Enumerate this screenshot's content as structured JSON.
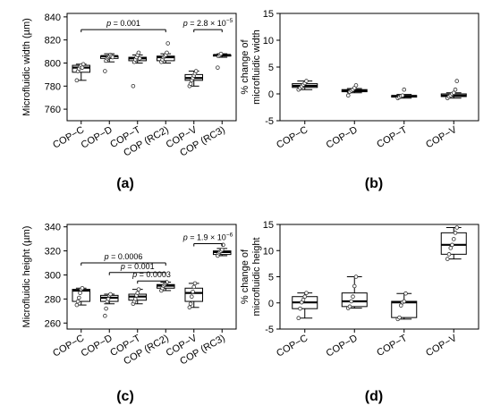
{
  "chart_data": [
    {
      "id": "a",
      "type": "box",
      "panel_label": "(a)",
      "ylabel": "Microfluidic width (µm)",
      "yticks": [
        760,
        780,
        800,
        820,
        840
      ],
      "ylim": [
        750,
        843
      ],
      "categories": [
        "COP−C",
        "COP−D",
        "COP−T",
        "COP (RC2)",
        "COP−V",
        "COP (RC3)"
      ],
      "boxes": [
        {
          "whislo": 785,
          "q1": 792,
          "med": 796,
          "q3": 798,
          "whishi": 799,
          "points": [
            785,
            793,
            795,
            797,
            798,
            796,
            799
          ]
        },
        {
          "whislo": 801,
          "q1": 804,
          "med": 806,
          "q3": 806,
          "whishi": 808,
          "points": [
            793,
            802,
            804,
            805,
            806,
            807,
            806,
            805
          ]
        },
        {
          "whislo": 800,
          "q1": 802,
          "med": 804,
          "q3": 805,
          "whishi": 807,
          "points": [
            780,
            801,
            803,
            805,
            807,
            809,
            804
          ]
        },
        {
          "whislo": 800,
          "q1": 802,
          "med": 805,
          "q3": 806,
          "whishi": 808,
          "points": [
            801,
            803,
            805,
            806,
            807,
            809,
            817
          ]
        },
        {
          "whislo": 780,
          "q1": 785,
          "med": 787,
          "q3": 790,
          "whishi": 793,
          "points": [
            780,
            782,
            785,
            787,
            789,
            791,
            793
          ]
        },
        {
          "whislo": 805,
          "q1": 806,
          "med": 807,
          "q3": 807,
          "whishi": 808,
          "points": [
            796,
            806,
            807,
            808
          ]
        }
      ],
      "annotations": [
        {
          "from": 0,
          "to": 3,
          "y": 829,
          "text_pre": "p",
          "text": " = 0.001"
        },
        {
          "from": 4,
          "to": 5,
          "y": 829,
          "text_pre": "p",
          "text": " = 2.8 × 10",
          "sup": "−5"
        }
      ]
    },
    {
      "id": "b",
      "type": "box",
      "panel_label": "(b)",
      "ylabel_lines": [
        "% change of",
        "microfluidic width"
      ],
      "yticks": [
        -5,
        0,
        5,
        10,
        15
      ],
      "ylim": [
        -5,
        15
      ],
      "categories": [
        "COP−C",
        "COP−D",
        "COP−T",
        "COP−V"
      ],
      "boxes": [
        {
          "whislo": 0.8,
          "q1": 1.2,
          "med": 1.5,
          "q3": 1.9,
          "whishi": 2.4,
          "points": [
            0.8,
            1.1,
            1.4,
            1.7,
            2.0,
            2.4
          ]
        },
        {
          "whislo": 0.2,
          "q1": 0.4,
          "med": 0.6,
          "q3": 0.8,
          "whishi": 1.0,
          "points": [
            -0.3,
            0.4,
            0.6,
            0.8,
            1.1,
            1.6
          ]
        },
        {
          "whislo": -0.8,
          "q1": -0.6,
          "med": -0.4,
          "q3": -0.3,
          "whishi": -0.1,
          "points": [
            -0.8,
            -0.6,
            -0.4,
            -0.3,
            0.8
          ]
        },
        {
          "whislo": -0.8,
          "q1": -0.5,
          "med": -0.3,
          "q3": 0.0,
          "whishi": 0.2,
          "points": [
            -0.8,
            -0.5,
            -0.3,
            0.0,
            0.2,
            0.8,
            2.4
          ]
        }
      ]
    },
    {
      "id": "c",
      "type": "box",
      "panel_label": "(c)",
      "ylabel": "Microfluidic height (µm)",
      "yticks": [
        260,
        280,
        300,
        320,
        340
      ],
      "ylim": [
        255,
        342
      ],
      "categories": [
        "COP−C",
        "COP−D",
        "COP−T",
        "COP (RC2)",
        "COP−V",
        "COP (RC3)"
      ],
      "boxes": [
        {
          "whislo": 275,
          "q1": 278,
          "med": 287,
          "q3": 288,
          "whishi": 289,
          "points": [
            275,
            278,
            281,
            285,
            288,
            289
          ]
        },
        {
          "whislo": 276,
          "q1": 278,
          "med": 281,
          "q3": 283,
          "whishi": 284,
          "points": [
            266,
            272,
            278,
            280,
            283,
            284
          ]
        },
        {
          "whislo": 276,
          "q1": 279,
          "med": 282,
          "q3": 284,
          "whishi": 288,
          "points": [
            276,
            278,
            280,
            283,
            285,
            288
          ]
        },
        {
          "whislo": 287,
          "q1": 289,
          "med": 291,
          "q3": 292,
          "whishi": 294,
          "points": [
            287,
            289,
            291,
            292,
            293,
            294
          ]
        },
        {
          "whislo": 273,
          "q1": 278,
          "med": 285,
          "q3": 289,
          "whishi": 293,
          "points": [
            273,
            276,
            282,
            286,
            290,
            293
          ]
        },
        {
          "whislo": 316,
          "q1": 317,
          "med": 319,
          "q3": 320,
          "whishi": 322,
          "points": [
            316,
            318,
            319,
            320,
            321,
            325
          ]
        }
      ],
      "annotations": [
        {
          "from": 0,
          "to": 3,
          "y": 310,
          "text_pre": "p",
          "text": " = 0.0006"
        },
        {
          "from": 1,
          "to": 3,
          "y": 302,
          "text_pre": "p",
          "text": " = 0.001"
        },
        {
          "from": 2,
          "to": 3,
          "y": 295,
          "text_pre": "p",
          "text": " = 0.0003"
        },
        {
          "from": 4,
          "to": 5,
          "y": 326,
          "text_pre": "p",
          "text": " = 1.9 × 10",
          "sup": "−6"
        }
      ]
    },
    {
      "id": "d",
      "type": "box",
      "panel_label": "(d)",
      "ylabel_lines": [
        "% change of",
        "microfluidic height"
      ],
      "yticks": [
        -5,
        0,
        5,
        10,
        15
      ],
      "ylim": [
        -5,
        15
      ],
      "categories": [
        "COP−C",
        "COP−D",
        "COP−T",
        "COP−V"
      ],
      "boxes": [
        {
          "whislo": -2.9,
          "q1": -1.1,
          "med": 0.1,
          "q3": 1.2,
          "whishi": 1.9,
          "points": [
            -2.9,
            -1.1,
            0.1,
            0.6,
            1.2,
            1.9
          ]
        },
        {
          "whislo": -1.0,
          "q1": -0.7,
          "med": 0.3,
          "q3": 1.9,
          "whishi": 5.0,
          "points": [
            -1.0,
            -0.7,
            0.3,
            1.2,
            3.2,
            5.0
          ]
        },
        {
          "whislo": -3.1,
          "q1": -2.8,
          "med": 0.1,
          "q3": 0.3,
          "whishi": 1.8,
          "points": [
            -3.1,
            -2.8,
            -0.5,
            0.1,
            0.3,
            1.8
          ]
        },
        {
          "whislo": 8.4,
          "q1": 9.3,
          "med": 11.1,
          "q3": 13.4,
          "whishi": 14.4,
          "points": [
            8.4,
            9.3,
            10.5,
            11.1,
            12.2,
            13.4,
            14.4
          ]
        }
      ]
    }
  ]
}
